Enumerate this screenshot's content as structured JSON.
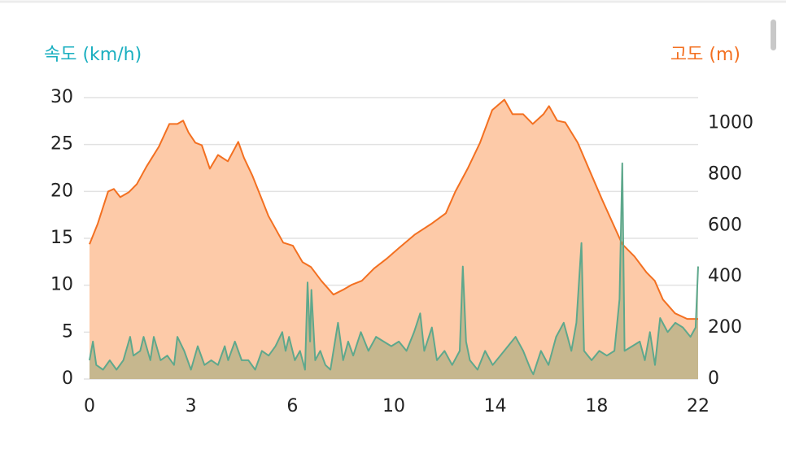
{
  "chart_data": {
    "type": "dual-area",
    "ylabel": "속도 (km/h)",
    "y2label": "고도 (m)",
    "ylabel_color": "#1aafc0",
    "y2label_color": "#f37021",
    "xlim": [
      0,
      22
    ],
    "xticks": [
      0,
      3,
      6,
      10,
      14,
      18,
      22
    ],
    "ylim": [
      0,
      30
    ],
    "yticks": [
      0,
      5,
      10,
      15,
      20,
      25,
      30
    ],
    "y2lim": [
      0,
      1100
    ],
    "y2ticks": [
      0,
      200,
      400,
      600,
      800,
      1000
    ],
    "grid": true,
    "series": [
      {
        "axis": "y2",
        "color": "#f37021",
        "fill": "#fdcaa8",
        "x": [
          0,
          0.24,
          0.55,
          0.72,
          0.91,
          1.16,
          1.4,
          1.68,
          2.05,
          2.36,
          2.6,
          2.77,
          2.93,
          3.13,
          3.32,
          3.56,
          3.8,
          4.09,
          4.4,
          4.57,
          4.81,
          5.05,
          5.29,
          5.73,
          6.02,
          6.4,
          6.73,
          7.14,
          7.62,
          8.0,
          8.33,
          8.74,
          9.22,
          9.71,
          10.19,
          10.83,
          11.47,
          12.05,
          12.43,
          12.91,
          13.4,
          13.88,
          14.36,
          14.68,
          15.1,
          15.48,
          15.9,
          16.12,
          16.44,
          16.76,
          17.25,
          17.73,
          18.21,
          18.69,
          19.01,
          19.49,
          19.97,
          20.29,
          20.61,
          21.09,
          21.57,
          22
        ],
        "values": [
          527,
          606,
          733,
          743,
          711,
          730,
          762,
          829,
          908,
          997,
          997,
          1010,
          963,
          924,
          914,
          822,
          876,
          851,
          927,
          864,
          797,
          718,
          638,
          533,
          521,
          457,
          438,
          384,
          330,
          349,
          368,
          384,
          432,
          470,
          511,
          565,
          606,
          648,
          733,
          822,
          924,
          1051,
          1092,
          1035,
          1035,
          997,
          1035,
          1067,
          1010,
          1003,
          924,
          813,
          702,
          597,
          527,
          479,
          416,
          384,
          311,
          257,
          235,
          235
        ]
      },
      {
        "axis": "y",
        "color": "#5ea88c",
        "fill": "rgba(130,160,110,0.45)",
        "x": [
          0,
          0.1,
          0.2,
          0.4,
          0.6,
          0.8,
          1.0,
          1.2,
          1.3,
          1.5,
          1.6,
          1.8,
          1.9,
          2.1,
          2.3,
          2.5,
          2.6,
          2.8,
          3.0,
          3.2,
          3.4,
          3.6,
          3.8,
          4.0,
          4.1,
          4.3,
          4.5,
          4.7,
          4.9,
          5.1,
          5.3,
          5.5,
          5.7,
          5.8,
          5.9,
          6.1,
          6.3,
          6.5,
          6.6,
          6.7,
          6.75,
          6.9,
          7.1,
          7.3,
          7.5,
          7.8,
          8.0,
          8.2,
          8.4,
          8.7,
          9.0,
          9.3,
          9.6,
          9.9,
          10.2,
          10.5,
          10.8,
          11.04,
          11.2,
          11.5,
          11.7,
          12.0,
          12.3,
          12.6,
          12.72,
          12.85,
          13.0,
          13.3,
          13.6,
          13.9,
          14.2,
          14.5,
          14.8,
          15.1,
          15.4,
          15.5,
          15.8,
          16.1,
          16.4,
          16.7,
          17.0,
          17.2,
          17.4,
          17.5,
          17.8,
          18.1,
          18.4,
          18.7,
          18.9,
          19.01,
          19.1,
          19.4,
          19.7,
          19.9,
          20.1,
          20.3,
          20.5,
          20.8,
          21.1,
          21.4,
          21.7,
          21.9,
          22
        ],
        "values": [
          2,
          4,
          1.5,
          1,
          2,
          1,
          2,
          4.5,
          2.5,
          3,
          4.5,
          2,
          4.5,
          2,
          2.5,
          1.5,
          4.5,
          3,
          1,
          3.5,
          1.5,
          2,
          1.5,
          3.5,
          2,
          4,
          2,
          2,
          1,
          3,
          2.5,
          3.5,
          5,
          3,
          4.5,
          2,
          3,
          1,
          10.3,
          4,
          9.5,
          2,
          3,
          1.5,
          1,
          6,
          2,
          4,
          2.5,
          5,
          3,
          4.5,
          4,
          3.5,
          4,
          3,
          5,
          7,
          3,
          5.5,
          2,
          3,
          1.5,
          3,
          12,
          4,
          2,
          1,
          3,
          1.5,
          2.5,
          3.5,
          4.5,
          3,
          1,
          0.5,
          3,
          1.5,
          4.5,
          6,
          3,
          6,
          14.5,
          3,
          2,
          3,
          2.5,
          3,
          8.5,
          23,
          3,
          3.5,
          4,
          2,
          5,
          1.5,
          6.5,
          5,
          6,
          5.5,
          4.5,
          5.5,
          12
        ]
      }
    ]
  }
}
